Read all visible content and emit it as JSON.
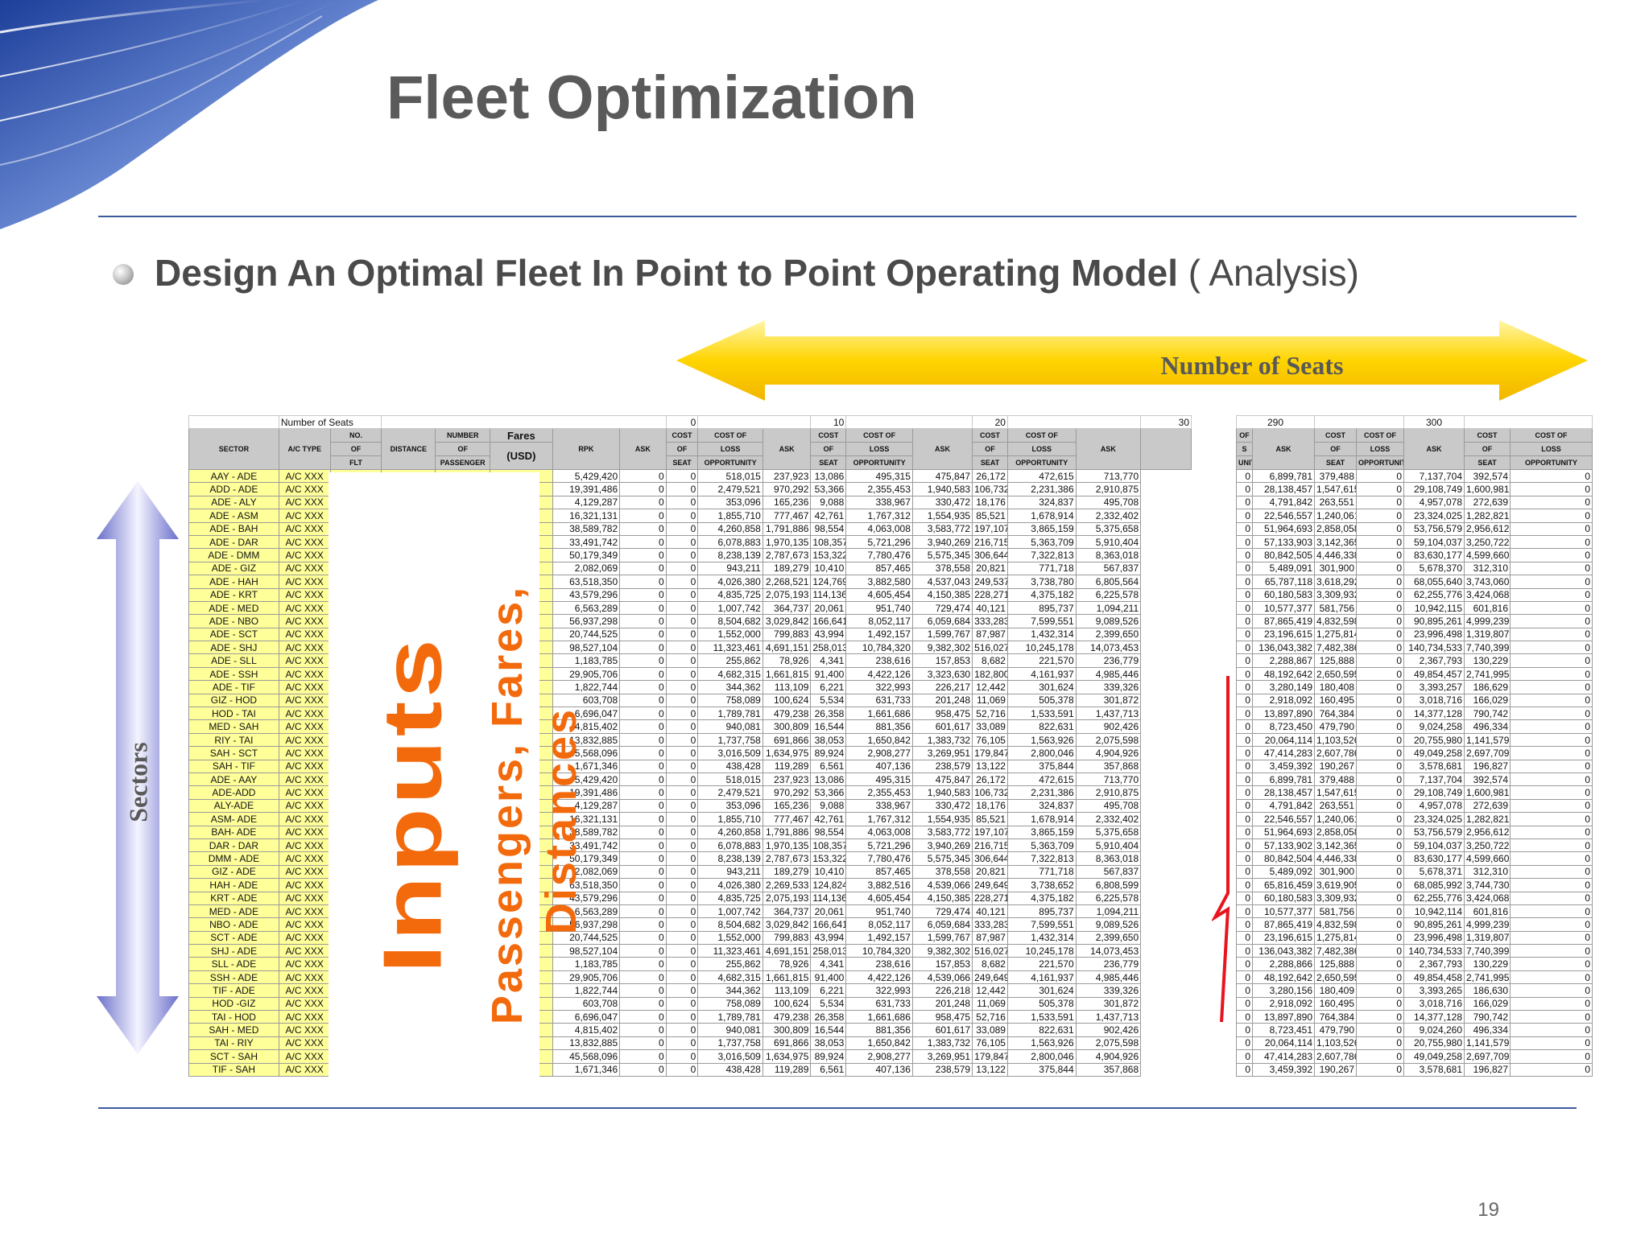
{
  "slide": {
    "title": "Fleet Optimization",
    "subtitle_bold": "Design An Optimal Fleet In Point to Point Operating Model",
    "subtitle_light": " ( Analysis)",
    "seats_label": "Number of Seats",
    "sectors_label": "Sectors",
    "inputs_label": "Inputs",
    "inputs_sub_line1": "Passengers, Fares,",
    "inputs_sub_line2": "Distances",
    "page_number": "19",
    "colors": {
      "title": "#5a5a5a",
      "rule": "#3e5a9e",
      "inputs": "#f26a0c",
      "highlight": "#ffff99",
      "header": "#c9c9c9"
    }
  },
  "sheet": {
    "number_of_seats_label": "Number of Seats",
    "seat_groups": [
      "0",
      "10",
      "20",
      "30"
    ],
    "headers": {
      "sector": "SECTOR",
      "ac_type": "A/C TYPE",
      "no_flt_1": "NO.",
      "no_flt_2": "OF",
      "no_flt_3": "FLT",
      "distance": "DISTANCE",
      "num_pax_1": "NUMBER",
      "num_pax_2": "OF",
      "num_pax_3": "PASSENGER",
      "fares_1": "Fares",
      "fares_2": "(USD)",
      "rpk": "RPK",
      "ask": "ASK",
      "cost_seat_1": "COST",
      "cost_seat_2": "OF",
      "cost_seat_3": "SEAT",
      "loss_1": "COST OF",
      "loss_2": "LOSS",
      "loss_3": "OPPORTUNITY"
    },
    "rows": [
      [
        "AAY - ADE",
        "A/C XXX",
        "5,429,420",
        "0",
        "0",
        "518,015",
        "237,923",
        "13,086",
        "495,315",
        "475,847",
        "26,172",
        "472,615",
        "713,770"
      ],
      [
        "ADD - ADE",
        "A/C XXX",
        "19,391,486",
        "0",
        "0",
        "2,479,521",
        "970,292",
        "53,366",
        "2,355,453",
        "1,940,583",
        "106,732",
        "2,231,386",
        "2,910,875"
      ],
      [
        "ADE - ALY",
        "A/C XXX",
        "4,129,287",
        "0",
        "0",
        "353,096",
        "165,236",
        "9,088",
        "338,967",
        "330,472",
        "18,176",
        "324,837",
        "495,708"
      ],
      [
        "ADE - ASM",
        "A/C XXX",
        "16,321,131",
        "0",
        "0",
        "1,855,710",
        "777,467",
        "42,761",
        "1,767,312",
        "1,554,935",
        "85,521",
        "1,678,914",
        "2,332,402"
      ],
      [
        "ADE - BAH",
        "A/C XXX",
        "38,589,782",
        "0",
        "0",
        "4,260,858",
        "1,791,886",
        "98,554",
        "4,063,008",
        "3,583,772",
        "197,107",
        "3,865,159",
        "5,375,658"
      ],
      [
        "ADE - DAR",
        "A/C XXX",
        "33,491,742",
        "0",
        "0",
        "6,078,883",
        "1,970,135",
        "108,357",
        "5,721,296",
        "3,940,269",
        "216,715",
        "5,363,709",
        "5,910,404"
      ],
      [
        "ADE - DMM",
        "A/C XXX",
        "50,179,349",
        "0",
        "0",
        "8,238,139",
        "2,787,673",
        "153,322",
        "7,780,476",
        "5,575,345",
        "306,644",
        "7,322,813",
        "8,363,018"
      ],
      [
        "ADE - GIZ",
        "A/C XXX",
        "2,082,069",
        "0",
        "0",
        "943,211",
        "189,279",
        "10,410",
        "857,465",
        "378,558",
        "20,821",
        "771,718",
        "567,837"
      ],
      [
        "ADE - HAH",
        "A/C XXX",
        "63,518,350",
        "0",
        "0",
        "4,026,380",
        "2,268,521",
        "124,769",
        "3,882,580",
        "4,537,043",
        "249,537",
        "3,738,780",
        "6,805,564"
      ],
      [
        "ADE - KRT",
        "A/C XXX",
        "43,579,296",
        "0",
        "0",
        "4,835,725",
        "2,075,193",
        "114,136",
        "4,605,454",
        "4,150,385",
        "228,271",
        "4,375,182",
        "6,225,578"
      ],
      [
        "ADE - MED",
        "A/C XXX",
        "6,563,289",
        "0",
        "0",
        "1,007,742",
        "364,737",
        "20,061",
        "951,740",
        "729,474",
        "40,121",
        "895,737",
        "1,094,211"
      ],
      [
        "ADE - NBO",
        "A/C XXX",
        "56,937,298",
        "0",
        "0",
        "8,504,682",
        "3,029,842",
        "166,641",
        "8,052,117",
        "6,059,684",
        "333,283",
        "7,599,551",
        "9,089,526"
      ],
      [
        "ADE - SCT",
        "A/C XXX",
        "20,744,525",
        "0",
        "0",
        "1,552,000",
        "799,883",
        "43,994",
        "1,492,157",
        "1,599,767",
        "87,987",
        "1,432,314",
        "2,399,650"
      ],
      [
        "ADE - SHJ",
        "A/C XXX",
        "98,527,104",
        "0",
        "0",
        "11,323,461",
        "4,691,151",
        "258,013",
        "10,784,320",
        "9,382,302",
        "516,027",
        "10,245,178",
        "14,073,453"
      ],
      [
        "ADE - SLL",
        "A/C XXX",
        "1,183,785",
        "0",
        "0",
        "255,862",
        "78,926",
        "4,341",
        "238,616",
        "157,853",
        "8,682",
        "221,570",
        "236,779"
      ],
      [
        "ADE - SSH",
        "A/C XXX",
        "29,905,706",
        "0",
        "0",
        "4,682,315",
        "1,661,815",
        "91,400",
        "4,422,126",
        "3,323,630",
        "182,800",
        "4,161,937",
        "4,985,446"
      ],
      [
        "ADE - TIF",
        "A/C XXX",
        "1,822,744",
        "0",
        "0",
        "344,362",
        "113,109",
        "6,221",
        "322,993",
        "226,217",
        "12,442",
        "301,624",
        "339,326"
      ],
      [
        "GIZ - HOD",
        "A/C XXX",
        "603,708",
        "0",
        "0",
        "758,089",
        "100,624",
        "5,534",
        "631,733",
        "201,248",
        "11,069",
        "505,378",
        "301,872"
      ],
      [
        "HOD - TAI",
        "A/C XXX",
        "6,696,047",
        "0",
        "0",
        "1,789,781",
        "479,238",
        "26,358",
        "1,661,686",
        "958,475",
        "52,716",
        "1,533,591",
        "1,437,713"
      ],
      [
        "MED - SAH",
        "A/C XXX",
        "4,815,402",
        "0",
        "0",
        "940,081",
        "300,809",
        "16,544",
        "881,356",
        "601,617",
        "33,089",
        "822,631",
        "902,426"
      ],
      [
        "RIY - TAI",
        "A/C XXX",
        "13,832,885",
        "0",
        "0",
        "1,737,758",
        "691,866",
        "38,053",
        "1,650,842",
        "1,383,732",
        "76,105",
        "1,563,926",
        "2,075,598"
      ],
      [
        "SAH - SCT",
        "A/C XXX",
        "45,568,096",
        "0",
        "0",
        "3,016,509",
        "1,634,975",
        "89,924",
        "2,908,277",
        "3,269,951",
        "179,847",
        "2,800,046",
        "4,904,926"
      ],
      [
        "SAH - TIF",
        "A/C XXX",
        "1,671,346",
        "0",
        "0",
        "438,428",
        "119,289",
        "6,561",
        "407,136",
        "238,579",
        "13,122",
        "375,844",
        "357,868"
      ],
      [
        "ADE - AAY",
        "A/C XXX",
        "5,429,420",
        "0",
        "0",
        "518,015",
        "237,923",
        "13,086",
        "495,315",
        "475,847",
        "26,172",
        "472,615",
        "713,770"
      ],
      [
        "ADE-ADD",
        "A/C XXX",
        "19,391,486",
        "0",
        "0",
        "2,479,521",
        "970,292",
        "53,366",
        "2,355,453",
        "1,940,583",
        "106,732",
        "2,231,386",
        "2,910,875"
      ],
      [
        "ALY-ADE",
        "A/C XXX",
        "4,129,287",
        "0",
        "0",
        "353,096",
        "165,236",
        "9,088",
        "338,967",
        "330,472",
        "18,176",
        "324,837",
        "495,708"
      ],
      [
        "ASM- ADE",
        "A/C XXX",
        "16,321,131",
        "0",
        "0",
        "1,855,710",
        "777,467",
        "42,761",
        "1,767,312",
        "1,554,935",
        "85,521",
        "1,678,914",
        "2,332,402"
      ],
      [
        "BAH- ADE",
        "A/C XXX",
        "38,589,782",
        "0",
        "0",
        "4,260,858",
        "1,791,886",
        "98,554",
        "4,063,008",
        "3,583,772",
        "197,107",
        "3,865,159",
        "5,375,658"
      ],
      [
        "DAR - DAR",
        "A/C XXX",
        "33,491,742",
        "0",
        "0",
        "6,078,883",
        "1,970,135",
        "108,357",
        "5,721,296",
        "3,940,269",
        "216,715",
        "5,363,709",
        "5,910,404"
      ],
      [
        "DMM - ADE",
        "A/C XXX",
        "50,179,349",
        "0",
        "0",
        "8,238,139",
        "2,787,673",
        "153,322",
        "7,780,476",
        "5,575,345",
        "306,644",
        "7,322,813",
        "8,363,018"
      ],
      [
        "GIZ - ADE",
        "A/C XXX",
        "2,082,069",
        "0",
        "0",
        "943,211",
        "189,279",
        "10,410",
        "857,465",
        "378,558",
        "20,821",
        "771,718",
        "567,837"
      ],
      [
        "HAH - ADE",
        "A/C XXX",
        "63,518,350",
        "0",
        "0",
        "4,026,380",
        "2,269,533",
        "124,824",
        "3,882,516",
        "4,539,066",
        "249,649",
        "3,738,652",
        "6,808,599"
      ],
      [
        "KRT - ADE",
        "A/C XXX",
        "43,579,296",
        "0",
        "0",
        "4,835,725",
        "2,075,193",
        "114,136",
        "4,605,454",
        "4,150,385",
        "228,271",
        "4,375,182",
        "6,225,578"
      ],
      [
        "MED - ADE",
        "A/C XXX",
        "6,563,289",
        "0",
        "0",
        "1,007,742",
        "364,737",
        "20,061",
        "951,740",
        "729,474",
        "40,121",
        "895,737",
        "1,094,211"
      ],
      [
        "NBO - ADE",
        "A/C XXX",
        "56,937,298",
        "0",
        "0",
        "8,504,682",
        "3,029,842",
        "166,641",
        "8,052,117",
        "6,059,684",
        "333,283",
        "7,599,551",
        "9,089,526"
      ],
      [
        "SCT - ADE",
        "A/C XXX",
        "20,744,525",
        "0",
        "0",
        "1,552,000",
        "799,883",
        "43,994",
        "1,492,157",
        "1,599,767",
        "87,987",
        "1,432,314",
        "2,399,650"
      ],
      [
        "SHJ - ADE",
        "A/C XXX",
        "98,527,104",
        "0",
        "0",
        "11,323,461",
        "4,691,151",
        "258,013",
        "10,784,320",
        "9,382,302",
        "516,027",
        "10,245,178",
        "14,073,453"
      ],
      [
        "SLL - ADE",
        "A/C XXX",
        "1,183,785",
        "0",
        "0",
        "255,862",
        "78,926",
        "4,341",
        "238,616",
        "157,853",
        "8,682",
        "221,570",
        "236,779"
      ],
      [
        "SSH - ADE",
        "A/C XXX",
        "29,905,706",
        "0",
        "0",
        "4,682,315",
        "1,661,815",
        "91,400",
        "4,422,126",
        "4,539,066",
        "249,649",
        "4,161,937",
        "4,985,446"
      ],
      [
        "TIF - ADE",
        "A/C XXX",
        "1,822,744",
        "0",
        "0",
        "344,362",
        "113,109",
        "6,221",
        "322,993",
        "226,218",
        "12,442",
        "301,624",
        "339,326"
      ],
      [
        "HOD -GIZ",
        "A/C XXX",
        "603,708",
        "0",
        "0",
        "758,089",
        "100,624",
        "5,534",
        "631,733",
        "201,248",
        "11,069",
        "505,378",
        "301,872"
      ],
      [
        "TAI - HOD",
        "A/C XXX",
        "6,696,047",
        "0",
        "0",
        "1,789,781",
        "479,238",
        "26,358",
        "1,661,686",
        "958,475",
        "52,716",
        "1,533,591",
        "1,437,713"
      ],
      [
        "SAH - MED",
        "A/C XXX",
        "4,815,402",
        "0",
        "0",
        "940,081",
        "300,809",
        "16,544",
        "881,356",
        "601,617",
        "33,089",
        "822,631",
        "902,426"
      ],
      [
        "TAI - RIY",
        "A/C XXX",
        "13,832,885",
        "0",
        "0",
        "1,737,758",
        "691,866",
        "38,053",
        "1,650,842",
        "1,383,732",
        "76,105",
        "1,563,926",
        "2,075,598"
      ],
      [
        "SCT - SAH",
        "A/C XXX",
        "45,568,096",
        "0",
        "0",
        "3,016,509",
        "1,634,975",
        "89,924",
        "2,908,277",
        "3,269,951",
        "179,847",
        "2,800,046",
        "4,904,926"
      ],
      [
        "TIF - SAH",
        "A/C XXX",
        "1,671,346",
        "0",
        "0",
        "438,428",
        "119,289",
        "6,561",
        "407,136",
        "238,579",
        "13,122",
        "375,844",
        "357,868"
      ]
    ]
  },
  "sheet2": {
    "seat_groups": [
      "290",
      "300"
    ],
    "headers": {
      "of": "OF",
      "s": "S",
      "unity": "UNITY",
      "ask": "ASK",
      "cost_seat_1": "COST",
      "cost_seat_2": "OF",
      "cost_seat_3": "SEAT",
      "loss_1": "COST OF",
      "loss_2": "LOSS",
      "loss_3": "OPPORTUNITY"
    },
    "rows": [
      [
        "0",
        "6,899,781",
        "379,488",
        "0",
        "7,137,704",
        "392,574",
        "0"
      ],
      [
        "0",
        "28,138,457",
        "1,547,615",
        "0",
        "29,108,749",
        "1,600,981",
        "0"
      ],
      [
        "0",
        "4,791,842",
        "263,551",
        "0",
        "4,957,078",
        "272,639",
        "0"
      ],
      [
        "0",
        "22,546,557",
        "1,240,061",
        "0",
        "23,324,025",
        "1,282,821",
        "0"
      ],
      [
        "0",
        "51,964,693",
        "2,858,058",
        "0",
        "53,756,579",
        "2,956,612",
        "0"
      ],
      [
        "0",
        "57,133,903",
        "3,142,365",
        "0",
        "59,104,037",
        "3,250,722",
        "0"
      ],
      [
        "0",
        "80,842,505",
        "4,446,338",
        "0",
        "83,630,177",
        "4,599,660",
        "0"
      ],
      [
        "0",
        "5,489,091",
        "301,900",
        "0",
        "5,678,370",
        "312,310",
        "0"
      ],
      [
        "0",
        "65,787,118",
        "3,618,292",
        "0",
        "68,055,640",
        "3,743,060",
        "0"
      ],
      [
        "0",
        "60,180,583",
        "3,309,932",
        "0",
        "62,255,776",
        "3,424,068",
        "0"
      ],
      [
        "0",
        "10,577,377",
        "581,756",
        "0",
        "10,942,115",
        "601,816",
        "0"
      ],
      [
        "0",
        "87,865,419",
        "4,832,598",
        "0",
        "90,895,261",
        "4,999,239",
        "0"
      ],
      [
        "0",
        "23,196,615",
        "1,275,814",
        "0",
        "23,996,498",
        "1,319,807",
        "0"
      ],
      [
        "0",
        "136,043,382",
        "7,482,386",
        "0",
        "140,734,533",
        "7,740,399",
        "0"
      ],
      [
        "0",
        "2,288,867",
        "125,888",
        "0",
        "2,367,793",
        "130,229",
        "0"
      ],
      [
        "0",
        "48,192,642",
        "2,650,595",
        "0",
        "49,854,457",
        "2,741,995",
        "0"
      ],
      [
        "0",
        "3,280,149",
        "180,408",
        "0",
        "3,393,257",
        "186,629",
        "0"
      ],
      [
        "0",
        "2,918,092",
        "160,495",
        "0",
        "3,018,716",
        "166,029",
        "0"
      ],
      [
        "0",
        "13,897,890",
        "764,384",
        "0",
        "14,377,128",
        "790,742",
        "0"
      ],
      [
        "0",
        "8,723,450",
        "479,790",
        "0",
        "9,024,258",
        "496,334",
        "0"
      ],
      [
        "0",
        "20,064,114",
        "1,103,526",
        "0",
        "20,755,980",
        "1,141,579",
        "0"
      ],
      [
        "0",
        "47,414,283",
        "2,607,786",
        "0",
        "49,049,258",
        "2,697,709",
        "0"
      ],
      [
        "0",
        "3,459,392",
        "190,267",
        "0",
        "3,578,681",
        "196,827",
        "0"
      ],
      [
        "0",
        "6,899,781",
        "379,488",
        "0",
        "7,137,704",
        "392,574",
        "0"
      ],
      [
        "0",
        "28,138,457",
        "1,547,615",
        "0",
        "29,108,749",
        "1,600,981",
        "0"
      ],
      [
        "0",
        "4,791,842",
        "263,551",
        "0",
        "4,957,078",
        "272,639",
        "0"
      ],
      [
        "0",
        "22,546,557",
        "1,240,061",
        "0",
        "23,324,025",
        "1,282,821",
        "0"
      ],
      [
        "0",
        "51,964,693",
        "2,858,058",
        "0",
        "53,756,579",
        "2,956,612",
        "0"
      ],
      [
        "0",
        "57,133,902",
        "3,142,365",
        "0",
        "59,104,037",
        "3,250,722",
        "0"
      ],
      [
        "0",
        "80,842,504",
        "4,446,338",
        "0",
        "83,630,177",
        "4,599,660",
        "0"
      ],
      [
        "0",
        "5,489,092",
        "301,900",
        "0",
        "5,678,371",
        "312,310",
        "0"
      ],
      [
        "0",
        "65,816,459",
        "3,619,905",
        "0",
        "68,085,992",
        "3,744,730",
        "0"
      ],
      [
        "0",
        "60,180,583",
        "3,309,932",
        "0",
        "62,255,776",
        "3,424,068",
        "0"
      ],
      [
        "0",
        "10,577,377",
        "581,756",
        "0",
        "10,942,114",
        "601,816",
        "0"
      ],
      [
        "0",
        "87,865,419",
        "4,832,598",
        "0",
        "90,895,261",
        "4,999,239",
        "0"
      ],
      [
        "0",
        "23,196,615",
        "1,275,814",
        "0",
        "23,996,498",
        "1,319,807",
        "0"
      ],
      [
        "0",
        "136,043,382",
        "7,482,386",
        "0",
        "140,734,533",
        "7,740,399",
        "0"
      ],
      [
        "0",
        "2,288,866",
        "125,888",
        "0",
        "2,367,793",
        "130,229",
        "0"
      ],
      [
        "0",
        "48,192,642",
        "2,650,595",
        "0",
        "49,854,458",
        "2,741,995",
        "0"
      ],
      [
        "0",
        "3,280,156",
        "180,409",
        "0",
        "3,393,265",
        "186,630",
        "0"
      ],
      [
        "0",
        "2,918,092",
        "160,495",
        "0",
        "3,018,716",
        "166,029",
        "0"
      ],
      [
        "0",
        "13,897,890",
        "764,384",
        "0",
        "14,377,128",
        "790,742",
        "0"
      ],
      [
        "0",
        "8,723,451",
        "479,790",
        "0",
        "9,024,260",
        "496,334",
        "0"
      ],
      [
        "0",
        "20,064,114",
        "1,103,526",
        "0",
        "20,755,980",
        "1,141,579",
        "0"
      ],
      [
        "0",
        "47,414,283",
        "2,607,786",
        "0",
        "49,049,258",
        "2,697,709",
        "0"
      ],
      [
        "0",
        "3,459,392",
        "190,267",
        "0",
        "3,578,681",
        "196,827",
        "0"
      ]
    ]
  }
}
